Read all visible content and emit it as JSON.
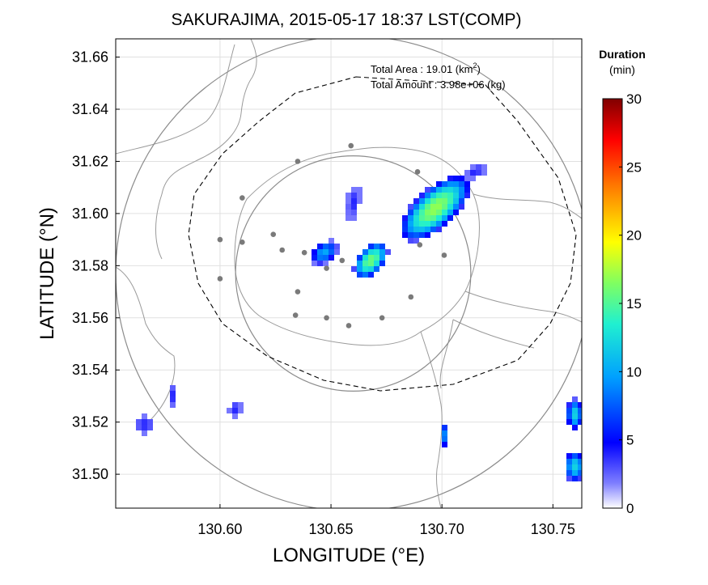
{
  "chart_data": {
    "type": "heatmap",
    "title": "SAKURAJIMA, 2015-05-17 18:37 LST(COMP)",
    "xlabel": "LONGITUDE (°E)",
    "ylabel": "LATITUDE (°N)",
    "xlim": [
      130.553,
      130.763
    ],
    "ylim": [
      31.487,
      31.667
    ],
    "xticks": [
      "130.60",
      "130.65",
      "130.70",
      "130.75"
    ],
    "xtick_values": [
      130.6,
      130.65,
      130.7,
      130.75
    ],
    "yticks": [
      "31.50",
      "31.52",
      "31.54",
      "31.56",
      "31.58",
      "31.60",
      "31.62",
      "31.64",
      "31.66"
    ],
    "ytick_values": [
      31.5,
      31.52,
      31.54,
      31.56,
      31.58,
      31.6,
      31.62,
      31.64,
      31.66
    ],
    "grid": true,
    "annotations": {
      "area_label": "Total Area   : 19.01 (km",
      "area_sup": "2",
      "area_close": ")",
      "amount_label": "Total Amount : 3.98e+06 (kg)"
    },
    "colorbar": {
      "title_line1": "Duration",
      "title_line2": "(min)",
      "min": 0,
      "max": 30,
      "ticks": [
        "0",
        "5",
        "10",
        "15",
        "20",
        "25",
        "30"
      ],
      "tick_values": [
        0,
        5,
        10,
        15,
        20,
        25,
        30
      ]
    },
    "range_circles": [
      {
        "center": [
          130.66,
          31.577
        ],
        "radius_lon": 0.107
      },
      {
        "center": [
          130.66,
          31.577
        ],
        "radius_lon": 0.053
      }
    ],
    "stations": [
      [
        130.659,
        31.626
      ],
      [
        130.635,
        31.62
      ],
      [
        130.689,
        31.616
      ],
      [
        130.61,
        31.606
      ],
      [
        130.624,
        31.592
      ],
      [
        130.6,
        31.59
      ],
      [
        130.61,
        31.589
      ],
      [
        130.628,
        31.586
      ],
      [
        130.638,
        31.585
      ],
      [
        130.648,
        31.579
      ],
      [
        130.655,
        31.582
      ],
      [
        130.69,
        31.588
      ],
      [
        130.701,
        31.584
      ],
      [
        130.6,
        31.575
      ],
      [
        130.635,
        31.57
      ],
      [
        130.686,
        31.568
      ],
      [
        130.634,
        31.561
      ],
      [
        130.648,
        31.56
      ],
      [
        130.673,
        31.56
      ],
      [
        130.658,
        31.557
      ]
    ],
    "plumes": [
      {
        "center": [
          130.697,
          31.602
        ],
        "rx": 0.02,
        "ry": 0.0075,
        "angle_deg": -42,
        "peak": 17
      },
      {
        "center": [
          130.668,
          31.582
        ],
        "rx": 0.01,
        "ry": 0.005,
        "angle_deg": -50,
        "peak": 16
      },
      {
        "center": [
          130.647,
          31.585
        ],
        "rx": 0.007,
        "ry": 0.004,
        "angle_deg": -35,
        "peak": 10
      },
      {
        "center": [
          130.66,
          31.604
        ],
        "rx": 0.003,
        "ry": 0.007,
        "angle_deg": 10,
        "peak": 4
      },
      {
        "center": [
          130.715,
          31.616
        ],
        "rx": 0.006,
        "ry": 0.0025,
        "angle_deg": -30,
        "peak": 4
      },
      {
        "center": [
          130.566,
          31.519
        ],
        "rx": 0.005,
        "ry": 0.0035,
        "angle_deg": 0,
        "peak": 4
      },
      {
        "center": [
          130.579,
          31.53
        ],
        "rx": 0.002,
        "ry": 0.005,
        "angle_deg": 0,
        "peak": 4
      },
      {
        "center": [
          130.607,
          31.525
        ],
        "rx": 0.003,
        "ry": 0.003,
        "angle_deg": 0,
        "peak": 4
      },
      {
        "center": [
          130.701,
          31.515
        ],
        "rx": 0.0015,
        "ry": 0.005,
        "angle_deg": 0,
        "peak": 9
      },
      {
        "center": [
          130.76,
          31.523
        ],
        "rx": 0.004,
        "ry": 0.006,
        "angle_deg": 0,
        "peak": 12
      },
      {
        "center": [
          130.76,
          31.503
        ],
        "rx": 0.005,
        "ry": 0.006,
        "angle_deg": 0,
        "peak": 12
      }
    ]
  }
}
